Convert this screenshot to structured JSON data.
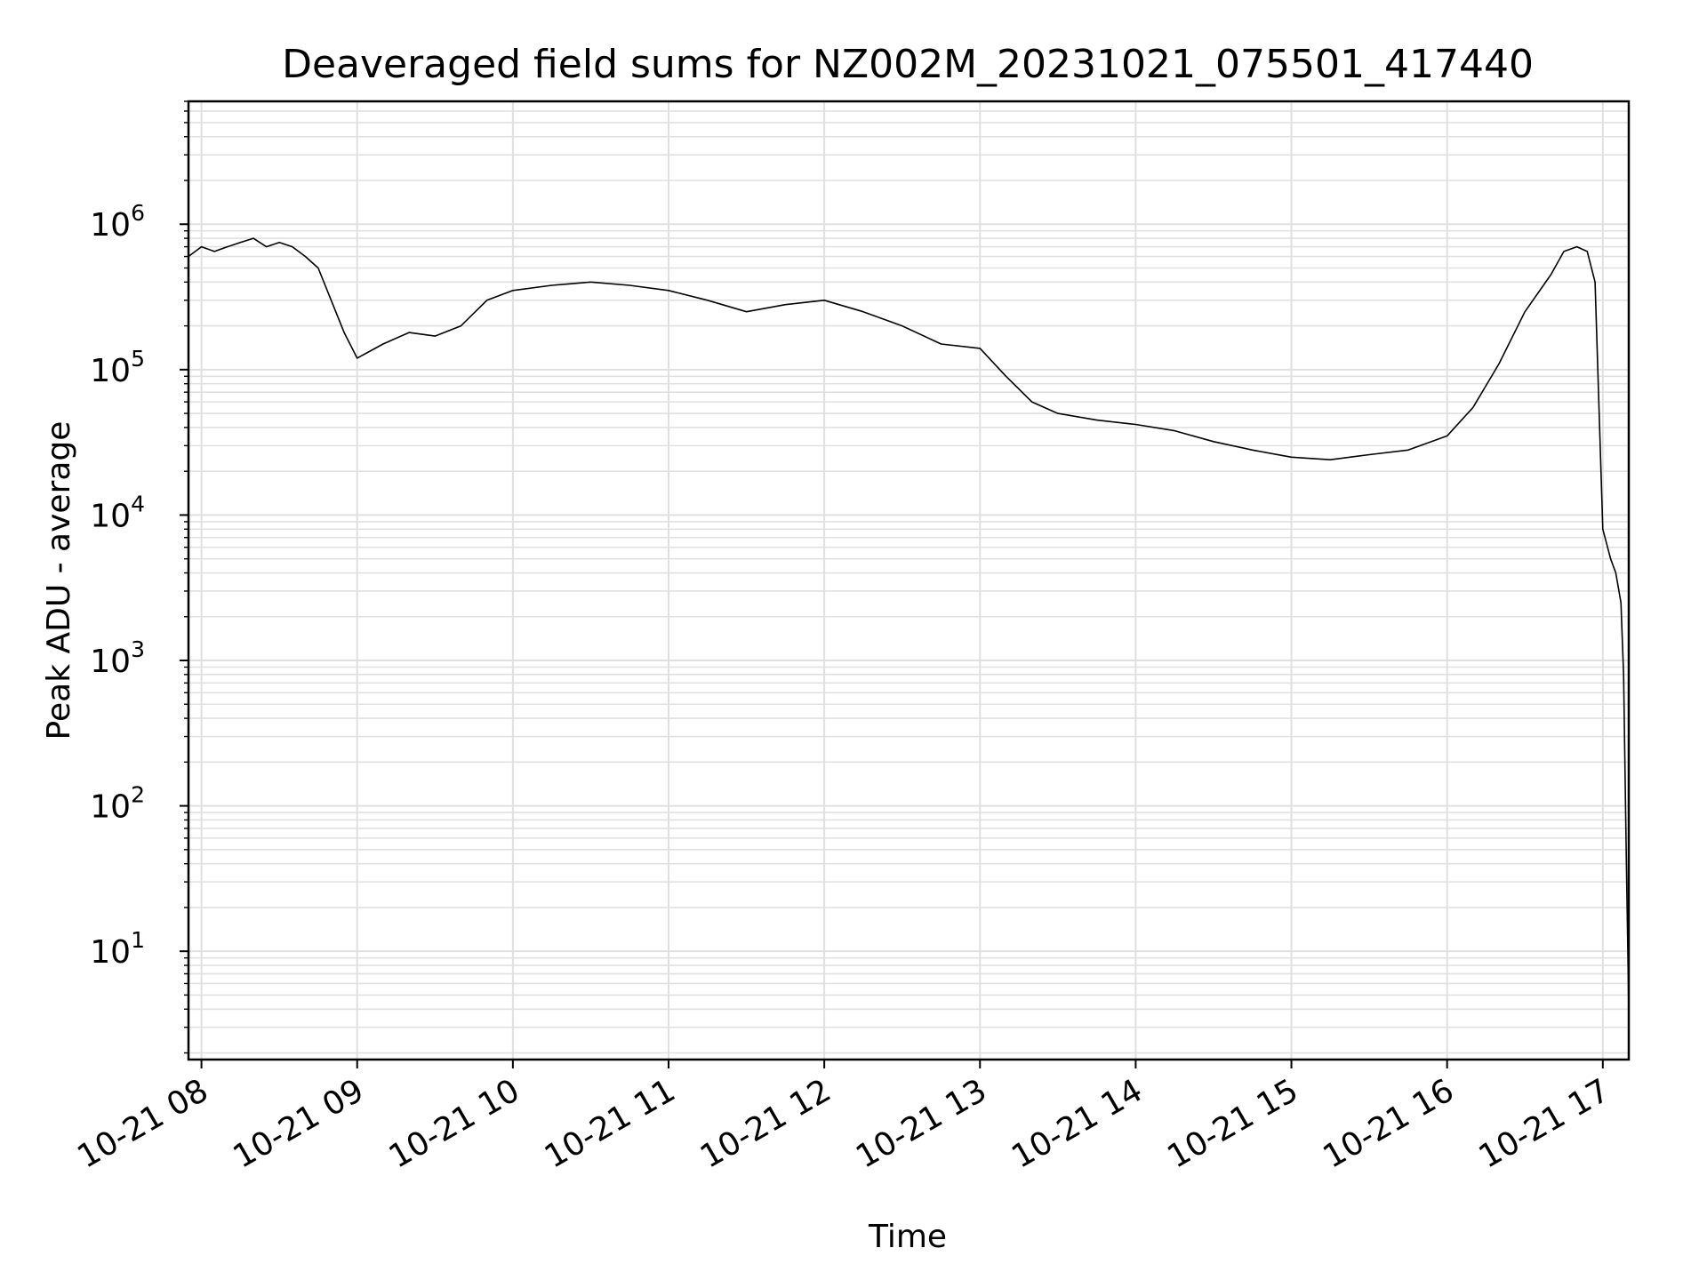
{
  "chart_data": {
    "type": "line",
    "title": "Deaveraged field sums for NZ002M_20231021_075501_417440",
    "xlabel": "Time",
    "ylabel": "Peak ADU - average",
    "yscale": "log",
    "ylim": [
      1.8,
      7000000
    ],
    "xlim": [
      "2023-10-21 07:55",
      "2023-10-21 17:10"
    ],
    "grid": true,
    "grid_color": "#e0e0e0",
    "line_color": "#000000",
    "x_ticks": [
      "10-21 08",
      "10-21 09",
      "10-21 10",
      "10-21 11",
      "10-21 12",
      "10-21 13",
      "10-21 14",
      "10-21 15",
      "10-21 16",
      "10-21 17"
    ],
    "x_tick_times": [
      "2023-10-21 08:00",
      "2023-10-21 09:00",
      "2023-10-21 10:00",
      "2023-10-21 11:00",
      "2023-10-21 12:00",
      "2023-10-21 13:00",
      "2023-10-21 14:00",
      "2023-10-21 15:00",
      "2023-10-21 16:00",
      "2023-10-21 17:00"
    ],
    "y_ticks": [
      {
        "base": "10",
        "exp": "1",
        "value": 10
      },
      {
        "base": "10",
        "exp": "2",
        "value": 100
      },
      {
        "base": "10",
        "exp": "3",
        "value": 1000
      },
      {
        "base": "10",
        "exp": "4",
        "value": 10000
      },
      {
        "base": "10",
        "exp": "5",
        "value": 100000
      },
      {
        "base": "10",
        "exp": "6",
        "value": 1000000
      }
    ],
    "series": [
      {
        "x": [
          "2023-10-21 07:55",
          "2023-10-21 08:00",
          "2023-10-21 08:05",
          "2023-10-21 08:10",
          "2023-10-21 08:15",
          "2023-10-21 08:20",
          "2023-10-21 08:25",
          "2023-10-21 08:30",
          "2023-10-21 08:35",
          "2023-10-21 08:40",
          "2023-10-21 08:45",
          "2023-10-21 08:50",
          "2023-10-21 08:55",
          "2023-10-21 09:00",
          "2023-10-21 09:10",
          "2023-10-21 09:20",
          "2023-10-21 09:30",
          "2023-10-21 09:40",
          "2023-10-21 09:50",
          "2023-10-21 10:00",
          "2023-10-21 10:15",
          "2023-10-21 10:30",
          "2023-10-21 10:45",
          "2023-10-21 11:00",
          "2023-10-21 11:15",
          "2023-10-21 11:30",
          "2023-10-21 11:45",
          "2023-10-21 12:00",
          "2023-10-21 12:15",
          "2023-10-21 12:30",
          "2023-10-21 12:45",
          "2023-10-21 13:00",
          "2023-10-21 13:10",
          "2023-10-21 13:20",
          "2023-10-21 13:30",
          "2023-10-21 13:45",
          "2023-10-21 14:00",
          "2023-10-21 14:15",
          "2023-10-21 14:30",
          "2023-10-21 14:45",
          "2023-10-21 15:00",
          "2023-10-21 15:15",
          "2023-10-21 15:30",
          "2023-10-21 15:45",
          "2023-10-21 16:00",
          "2023-10-21 16:10",
          "2023-10-21 16:20",
          "2023-10-21 16:30",
          "2023-10-21 16:40",
          "2023-10-21 16:45",
          "2023-10-21 16:50",
          "2023-10-21 16:54",
          "2023-10-21 16:57",
          "2023-10-21 17:00",
          "2023-10-21 17:03",
          "2023-10-21 17:05",
          "2023-10-21 17:07",
          "2023-10-21 17:08",
          "2023-10-21 17:09",
          "2023-10-21 17:10"
        ],
        "y": [
          600000,
          700000,
          650000,
          700000,
          750000,
          800000,
          700000,
          750000,
          700000,
          600000,
          500000,
          300000,
          180000,
          120000,
          150000,
          180000,
          170000,
          200000,
          300000,
          350000,
          380000,
          400000,
          380000,
          350000,
          300000,
          250000,
          280000,
          300000,
          250000,
          200000,
          150000,
          140000,
          90000,
          60000,
          50000,
          45000,
          42000,
          38000,
          32000,
          28000,
          25000,
          24000,
          26000,
          28000,
          35000,
          55000,
          110000,
          250000,
          450000,
          650000,
          700000,
          650000,
          400000,
          8000,
          5000,
          4000,
          2500,
          800,
          50,
          4
        ]
      }
    ]
  }
}
